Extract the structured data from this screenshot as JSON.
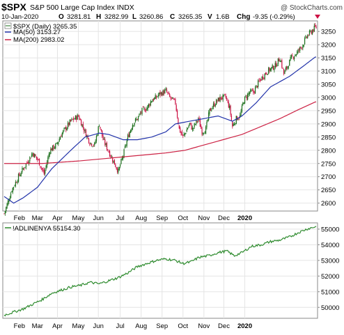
{
  "header": {
    "symbol": "$SPX",
    "name": "S&P 500 Large Cap Index INDX",
    "watermark": "@ StockCharts.com",
    "date": "10-Jan-2020",
    "o_label": "O",
    "o_value": "3281.81",
    "h_label": "H",
    "h_value": "3282.99",
    "l_label": "L",
    "l_value": "3260.86",
    "c_label": "C",
    "c_value": "3265.35",
    "v_label": "V",
    "v_value": "1.6B",
    "chg_label": "Chg",
    "chg_value": "-9.35 (-0.29%)"
  },
  "legend": {
    "price": "$SPX (Daily) 3265.35",
    "ma50": "MA(50) 3153.27",
    "ma200": "MA(200) 2983.02"
  },
  "lower_legend": {
    "label": "!ADLINENYA 55154.30"
  },
  "colors": {
    "up": "#1a6e1a",
    "down": "#cc1144",
    "ma50": "#2233aa",
    "ma200": "#cc2244",
    "adline": "#2e8b2e",
    "grid": "#e4e4e4",
    "frame": "#888888"
  },
  "chart_data": [
    {
      "type": "candlestick",
      "title": "$SPX (Daily) 3265.35",
      "x": [
        "Feb",
        "Mar",
        "Apr",
        "May",
        "Jun",
        "Jul",
        "Aug",
        "Sep",
        "Oct",
        "Nov",
        "Dec",
        "2020"
      ],
      "y_ticks": [
        2600,
        2650,
        2700,
        2750,
        2800,
        2850,
        2900,
        2950,
        3000,
        3050,
        3100,
        3150,
        3200,
        3250
      ],
      "ylim": [
        2570,
        3290
      ],
      "series": [
        {
          "name": "$SPX (Daily)",
          "keypoints": [
            [
              0,
              2560
            ],
            [
              8,
              2650
            ],
            [
              15,
              2700
            ],
            [
              25,
              2760
            ],
            [
              30,
              2790
            ],
            [
              36,
              2760
            ],
            [
              42,
              2710
            ],
            [
              48,
              2800
            ],
            [
              55,
              2820
            ],
            [
              60,
              2860
            ],
            [
              64,
              2880
            ],
            [
              70,
              2910
            ],
            [
              78,
              2930
            ],
            [
              85,
              2870
            ],
            [
              90,
              2830
            ],
            [
              95,
              2820
            ],
            [
              100,
              2900
            ],
            [
              104,
              2840
            ],
            [
              112,
              2780
            ],
            [
              120,
              2720
            ],
            [
              125,
              2780
            ],
            [
              130,
              2850
            ],
            [
              135,
              2900
            ],
            [
              140,
              2920
            ],
            [
              145,
              2950
            ],
            [
              150,
              2960
            ],
            [
              155,
              2990
            ],
            [
              160,
              3000
            ],
            [
              162,
              3010
            ],
            [
              170,
              3025
            ],
            [
              174,
              3000
            ],
            [
              180,
              2980
            ],
            [
              184,
              2880
            ],
            [
              188,
              2850
            ],
            [
              195,
              2900
            ],
            [
              198,
              2880
            ],
            [
              204,
              2920
            ],
            [
              208,
              2870
            ],
            [
              212,
              2880
            ],
            [
              216,
              2950
            ],
            [
              222,
              2980
            ],
            [
              228,
              3000
            ],
            [
              233,
              3000
            ],
            [
              237,
              2960
            ],
            [
              240,
              2890
            ],
            [
              244,
              2920
            ],
            [
              248,
              2930
            ],
            [
              252,
              2990
            ],
            [
              258,
              3020
            ],
            [
              262,
              3020
            ],
            [
              268,
              3060
            ],
            [
              272,
              3080
            ],
            [
              277,
              3100
            ],
            [
              281,
              3110
            ],
            [
              285,
              3120
            ],
            [
              290,
              3150
            ],
            [
              294,
              3090
            ],
            [
              298,
              3120
            ],
            [
              302,
              3150
            ],
            [
              308,
              3170
            ],
            [
              314,
              3200
            ],
            [
              318,
              3230
            ],
            [
              323,
              3250
            ],
            [
              327,
              3265
            ]
          ]
        },
        {
          "name": "MA(50)",
          "keypoints": [
            [
              0,
              2625
            ],
            [
              10,
              2600
            ],
            [
              20,
              2620
            ],
            [
              35,
              2660
            ],
            [
              50,
              2730
            ],
            [
              70,
              2800
            ],
            [
              85,
              2850
            ],
            [
              100,
              2865
            ],
            [
              110,
              2860
            ],
            [
              125,
              2840
            ],
            [
              140,
              2840
            ],
            [
              155,
              2850
            ],
            [
              170,
              2870
            ],
            [
              180,
              2900
            ],
            [
              195,
              2910
            ],
            [
              210,
              2920
            ],
            [
              225,
              2930
            ],
            [
              240,
              2910
            ],
            [
              250,
              2930
            ],
            [
              265,
              2980
            ],
            [
              280,
              3040
            ],
            [
              300,
              3080
            ],
            [
              315,
              3120
            ],
            [
              327,
              3153
            ]
          ]
        },
        {
          "name": "MA(200)",
          "keypoints": [
            [
              0,
              2750
            ],
            [
              40,
              2750
            ],
            [
              80,
              2760
            ],
            [
              110,
              2770
            ],
            [
              140,
              2780
            ],
            [
              170,
              2790
            ],
            [
              190,
              2800
            ],
            [
              210,
              2820
            ],
            [
              230,
              2840
            ],
            [
              250,
              2860
            ],
            [
              270,
              2890
            ],
            [
              290,
              2920
            ],
            [
              310,
              2955
            ],
            [
              327,
              2983
            ]
          ]
        }
      ]
    },
    {
      "type": "line",
      "title": "!ADLINENYA 55154.30",
      "x": [
        "Feb",
        "Mar",
        "Apr",
        "May",
        "Jun",
        "Jul",
        "Aug",
        "Sep",
        "Oct",
        "Nov",
        "Dec",
        "2020"
      ],
      "y_ticks": [
        50000,
        51000,
        52000,
        53000,
        54000,
        55000
      ],
      "ylim": [
        49300,
        55400
      ],
      "series": [
        {
          "name": "!ADLINENYA",
          "keypoints": [
            [
              0,
              49500
            ],
            [
              10,
              49700
            ],
            [
              20,
              49900
            ],
            [
              30,
              50200
            ],
            [
              40,
              50500
            ],
            [
              50,
              50900
            ],
            [
              60,
              51100
            ],
            [
              70,
              51300
            ],
            [
              80,
              51400
            ],
            [
              90,
              51600
            ],
            [
              100,
              51500
            ],
            [
              110,
              51700
            ],
            [
              120,
              51900
            ],
            [
              130,
              52200
            ],
            [
              140,
              52600
            ],
            [
              150,
              52800
            ],
            [
              160,
              53000
            ],
            [
              170,
              53100
            ],
            [
              180,
              53000
            ],
            [
              188,
              52800
            ],
            [
              196,
              52900
            ],
            [
              205,
              53200
            ],
            [
              215,
              53300
            ],
            [
              225,
              53500
            ],
            [
              234,
              53600
            ],
            [
              242,
              53300
            ],
            [
              250,
              53500
            ],
            [
              260,
              53900
            ],
            [
              270,
              54000
            ],
            [
              280,
              54200
            ],
            [
              290,
              54300
            ],
            [
              300,
              54500
            ],
            [
              310,
              54800
            ],
            [
              318,
              55000
            ],
            [
              327,
              55154
            ]
          ]
        }
      ]
    }
  ]
}
